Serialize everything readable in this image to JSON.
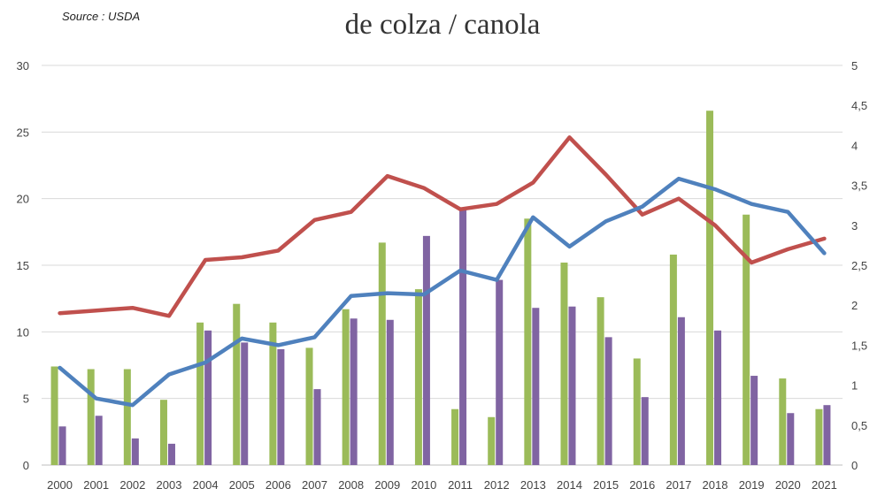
{
  "source_note": "Source : USDA",
  "title": "de colza / canola",
  "chart_data": {
    "type": "bar",
    "categories": [
      "2000",
      "2001",
      "2002",
      "2003",
      "2004",
      "2005",
      "2006",
      "2007",
      "2008",
      "2009",
      "2010",
      "2011",
      "2012",
      "2013",
      "2014",
      "2015",
      "2016",
      "2017",
      "2018",
      "2019",
      "2020",
      "2021"
    ],
    "ylim_left": [
      0,
      30
    ],
    "yticks_left": [
      "0",
      "5",
      "10",
      "15",
      "20",
      "25",
      "30"
    ],
    "ylim_right": [
      0,
      5
    ],
    "yticks_right": [
      "0",
      "0,5",
      "1",
      "1,5",
      "2",
      "2,5",
      "3",
      "3,5",
      "4",
      "4,5",
      "5"
    ],
    "grid": true,
    "series": [
      {
        "type": "bar",
        "axis": "left",
        "color": "#9BBB59",
        "values": [
          7.4,
          7.2,
          7.2,
          4.9,
          10.7,
          12.1,
          10.7,
          8.8,
          11.7,
          16.7,
          13.2,
          4.2,
          3.6,
          18.5,
          15.2,
          12.6,
          8.0,
          15.8,
          26.6,
          18.8,
          6.5,
          4.2
        ]
      },
      {
        "type": "bar",
        "axis": "left",
        "color": "#8064A2",
        "values": [
          2.9,
          3.7,
          2.0,
          1.6,
          10.1,
          9.2,
          8.7,
          5.7,
          11.0,
          10.9,
          17.2,
          19.2,
          13.9,
          11.8,
          11.9,
          9.6,
          5.1,
          11.1,
          10.1,
          6.7,
          3.9,
          4.5
        ]
      },
      {
        "type": "line",
        "axis": "left",
        "color": "#C0504D",
        "values": [
          11.4,
          11.6,
          11.8,
          11.2,
          15.4,
          15.6,
          16.1,
          18.4,
          19.0,
          21.7,
          20.8,
          19.2,
          19.6,
          21.2,
          24.6,
          21.8,
          18.8,
          20.0,
          18.0,
          15.2,
          16.2,
          17.0
        ]
      },
      {
        "type": "line",
        "axis": "left",
        "color": "#4F81BD",
        "values": [
          7.3,
          5.0,
          4.5,
          6.8,
          7.7,
          9.5,
          9.0,
          9.6,
          12.7,
          12.9,
          12.8,
          14.6,
          13.9,
          18.6,
          16.4,
          18.3,
          19.4,
          21.5,
          20.7,
          19.6,
          19.0,
          15.9
        ]
      }
    ]
  }
}
